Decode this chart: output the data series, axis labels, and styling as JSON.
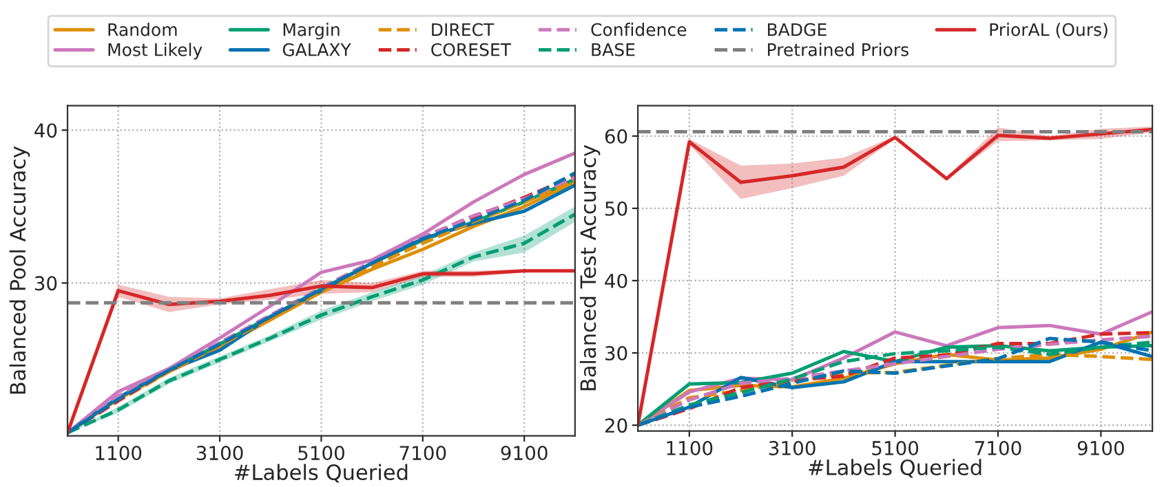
{
  "chart_data": [
    {
      "type": "line",
      "xlabel": "#Labels Queried",
      "ylabel": "Balanced Pool Accuracy",
      "x": [
        100,
        1100,
        2100,
        3100,
        4100,
        5100,
        6100,
        7100,
        8100,
        9100,
        10100
      ],
      "xlim": [
        100,
        10100
      ],
      "xticks": [
        1100,
        3100,
        5100,
        7100,
        9100
      ],
      "ylim": [
        20,
        41.6
      ],
      "yticks": [
        30,
        40
      ],
      "grid": true,
      "legend": "top",
      "series": [
        {
          "name": "Random",
          "color": "#de8f05",
          "line_style": "solid",
          "values": [
            20.2,
            22.4,
            24.2,
            25.8,
            27.6,
            29.4,
            30.9,
            32.2,
            33.7,
            35.0,
            36.6
          ]
        },
        {
          "name": "Most Likely",
          "color": "#cc78bc",
          "line_style": "solid",
          "values": [
            20.2,
            22.9,
            24.4,
            26.4,
            28.5,
            30.7,
            31.5,
            33.2,
            35.3,
            37.1,
            38.5
          ]
        },
        {
          "name": "Margin",
          "color": "#029e73",
          "line_style": "solid",
          "values": [
            20.2,
            22.5,
            24.3,
            26.0,
            27.8,
            29.6,
            31.3,
            32.8,
            34.0,
            35.3,
            36.8
          ]
        },
        {
          "name": "GALAXY",
          "color": "#0173b2",
          "line_style": "solid",
          "values": [
            20.2,
            22.5,
            24.3,
            25.6,
            27.8,
            29.5,
            31.3,
            32.9,
            33.9,
            34.7,
            36.4
          ]
        },
        {
          "name": "DIRECT",
          "color": "#de8f05",
          "line_style": "dashed",
          "values": [
            20.2,
            22.3,
            24.2,
            25.9,
            27.7,
            29.5,
            31.1,
            32.6,
            34.0,
            35.3,
            36.7
          ]
        },
        {
          "name": "CORESET",
          "color": "#d62728",
          "line_style": "dashed",
          "values": [
            20.2,
            22.3,
            24.3,
            26.0,
            27.8,
            29.6,
            31.3,
            32.9,
            34.3,
            35.6,
            37.0
          ]
        },
        {
          "name": "Confidence",
          "color": "#cc78bc",
          "line_style": "dashed",
          "values": [
            20.2,
            22.6,
            24.4,
            26.1,
            27.9,
            29.7,
            31.4,
            33.0,
            34.4,
            35.5,
            36.9
          ]
        },
        {
          "name": "BASE",
          "color": "#029e73",
          "line_style": "dashed",
          "values": [
            20.2,
            21.7,
            23.6,
            25.0,
            26.4,
            27.9,
            29.1,
            30.2,
            31.7,
            32.6,
            34.5
          ],
          "lower": [
            20.2,
            21.5,
            23.4,
            24.8,
            26.2,
            27.6,
            28.8,
            29.9,
            31.4,
            32.0,
            34.0
          ],
          "upper": [
            20.2,
            21.9,
            23.8,
            25.2,
            26.6,
            28.2,
            29.4,
            30.5,
            32.0,
            33.1,
            35.0
          ]
        },
        {
          "name": "BADGE",
          "color": "#0173b2",
          "line_style": "dashed",
          "values": [
            20.2,
            22.4,
            24.3,
            26.0,
            27.8,
            29.6,
            31.3,
            32.9,
            34.1,
            35.4,
            37.2
          ]
        },
        {
          "name": "PriorAL (Ours)",
          "color": "#d62728",
          "line_style": "solid",
          "values": [
            20.2,
            29.5,
            28.6,
            28.8,
            29.2,
            29.8,
            29.7,
            30.6,
            30.6,
            30.8,
            30.8
          ],
          "lower": [
            20.2,
            29.1,
            28.1,
            28.6,
            28.9,
            29.3,
            29.4,
            30.4,
            30.4,
            30.7,
            30.7
          ],
          "upper": [
            20.2,
            29.9,
            29.1,
            29.0,
            29.6,
            30.2,
            30.0,
            30.8,
            30.8,
            30.9,
            30.9
          ]
        }
      ],
      "ref_lines": [
        {
          "axis": "y",
          "value": 28.7,
          "label": "Pretrained Priors",
          "color": "#808080",
          "line_style": "dashed"
        }
      ]
    },
    {
      "type": "line",
      "xlabel": "#Labels Queried",
      "ylabel": "Balanced Test Accuracy",
      "x": [
        100,
        1100,
        2100,
        3100,
        4100,
        5100,
        6100,
        7100,
        8100,
        9100,
        10100
      ],
      "xlim": [
        100,
        10100
      ],
      "xticks": [
        1100,
        3100,
        5100,
        7100,
        9100
      ],
      "ylim": [
        19.2,
        64.2
      ],
      "yticks": [
        20,
        30,
        40,
        50,
        60
      ],
      "grid": true,
      "series": [
        {
          "color": "#de8f05",
          "line_style": "solid",
          "values": [
            20,
            24.8,
            25.5,
            25.3,
            26.5,
            28.5,
            29.8,
            29.0,
            29.3,
            30.5,
            32.9
          ]
        },
        {
          "color": "#cc78bc",
          "line_style": "solid",
          "values": [
            20,
            24.6,
            26.5,
            26.3,
            29.3,
            32.9,
            31.0,
            33.5,
            33.8,
            32.6,
            35.7
          ]
        },
        {
          "color": "#029e73",
          "line_style": "solid",
          "values": [
            20,
            25.7,
            25.9,
            27.2,
            30.2,
            28.8,
            30.8,
            31.0,
            30.3,
            30.8,
            31.0
          ]
        },
        {
          "color": "#0173b2",
          "line_style": "solid",
          "values": [
            20,
            22.5,
            26.6,
            25.2,
            26.0,
            28.8,
            28.8,
            28.8,
            28.8,
            31.5,
            29.5
          ]
        },
        {
          "color": "#de8f05",
          "line_style": "dashed",
          "values": [
            20,
            23.8,
            24.8,
            26.0,
            27.2,
            27.3,
            28.3,
            29.2,
            29.8,
            29.5,
            29.1
          ]
        },
        {
          "color": "#d62728",
          "line_style": "dashed",
          "values": [
            20,
            22.3,
            25.2,
            26.2,
            26.8,
            29.3,
            29.7,
            31.3,
            31.3,
            32.6,
            32.8
          ]
        },
        {
          "color": "#cc78bc",
          "line_style": "dashed",
          "values": [
            20,
            23.5,
            25.8,
            26.5,
            27.5,
            28.5,
            29.5,
            30.5,
            31.2,
            31.8,
            32.3
          ]
        },
        {
          "color": "#029e73",
          "line_style": "dashed",
          "values": [
            20,
            22.8,
            24.5,
            26.4,
            28.8,
            29.9,
            30.3,
            30.8,
            29.8,
            30.8,
            31.5
          ]
        },
        {
          "color": "#0173b2",
          "line_style": "dashed",
          "values": [
            20,
            22.5,
            24.0,
            25.8,
            27.5,
            27.2,
            28.2,
            29.2,
            32.0,
            31.5,
            30.3
          ]
        },
        {
          "color": "#d62728",
          "line_style": "solid",
          "values": [
            20,
            59.2,
            53.6,
            54.5,
            55.7,
            59.8,
            54.1,
            60.1,
            59.7,
            60.3,
            60.9
          ],
          "lower": [
            20,
            58.8,
            51.3,
            52.8,
            54.5,
            59.6,
            53.9,
            59.3,
            59.4,
            59.6,
            60.5
          ],
          "upper": [
            20,
            59.6,
            55.9,
            56.2,
            57.0,
            60.0,
            54.3,
            61.2,
            60.0,
            61.0,
            61.3
          ]
        }
      ],
      "ref_lines": [
        {
          "axis": "y",
          "value": 60.6,
          "color": "#808080",
          "line_style": "dashed"
        }
      ]
    }
  ]
}
